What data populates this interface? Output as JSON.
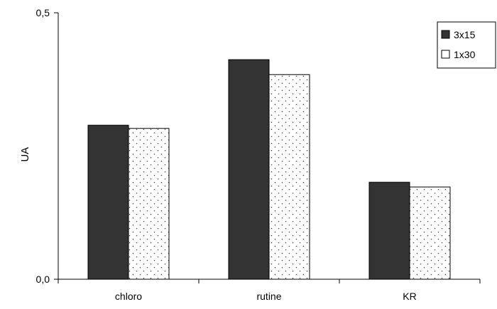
{
  "colors": {
    "series_dark": "#333333",
    "series_dotted_bg": "#ffffff",
    "series_dotted_dot": "#444444",
    "axis": "#000000"
  },
  "chart_data": {
    "type": "bar",
    "categories": [
      "chloro",
      "rutine",
      "KR"
    ],
    "series": [
      {
        "name": "3x15",
        "values": [
          0.289,
          0.412,
          0.182
        ],
        "fill": "solid-dark"
      },
      {
        "name": "1x30",
        "values": [
          0.283,
          0.384,
          0.173
        ],
        "fill": "dotted"
      }
    ],
    "title": "",
    "xlabel": "",
    "ylabel": "UA",
    "ylim": [
      0,
      0.5
    ],
    "yticks": [
      0,
      0.5
    ],
    "ytick_labels": [
      "0,0",
      "0,5"
    ],
    "grid": false,
    "legend_position": "top-right"
  }
}
